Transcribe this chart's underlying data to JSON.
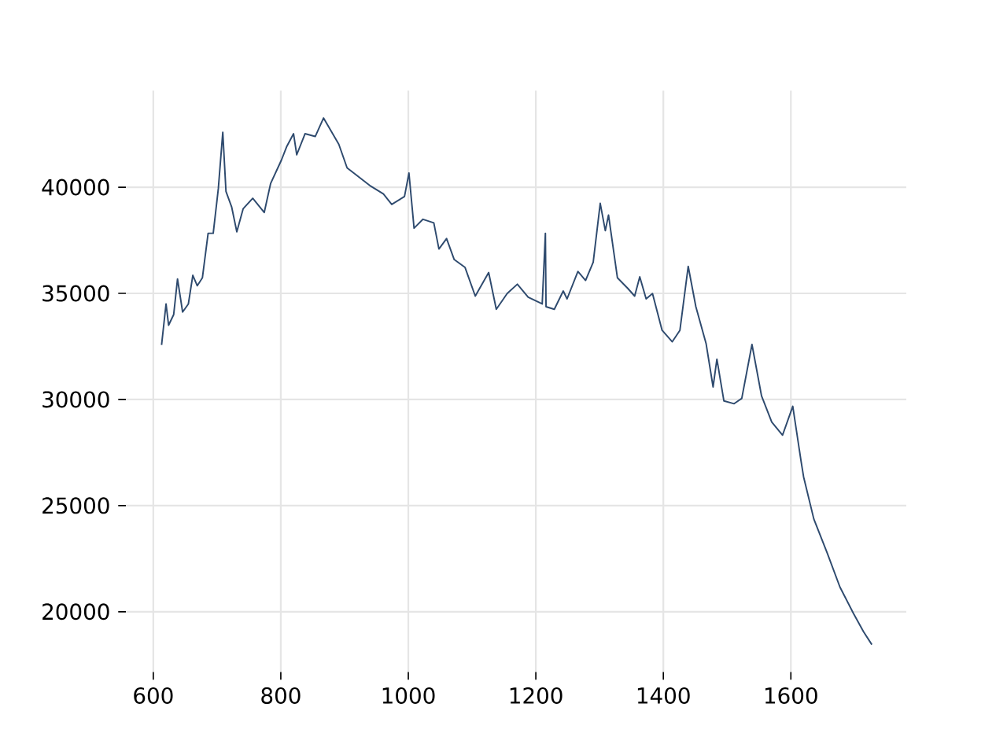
{
  "chart_data": {
    "type": "line",
    "color": "#2e4a6e",
    "grid": true,
    "xlim": [
      557,
      1781
    ],
    "ylim": [
      17160,
      44550
    ],
    "xticks": [
      600,
      800,
      1000,
      1200,
      1400,
      1600
    ],
    "yticks": [
      20000,
      25000,
      30000,
      35000,
      40000
    ],
    "x": [
      613,
      620,
      624,
      632,
      638,
      646,
      655,
      662,
      669,
      677,
      686,
      694,
      702,
      709,
      714,
      723,
      731,
      741,
      756,
      774,
      784,
      801,
      809,
      820,
      825,
      838,
      854,
      867,
      879,
      891,
      904,
      920,
      941,
      961,
      974,
      994,
      1001,
      1009,
      1023,
      1040,
      1048,
      1060,
      1072,
      1089,
      1105,
      1126,
      1138,
      1155,
      1171,
      1188,
      1210,
      1215,
      1216,
      1229,
      1243,
      1249,
      1266,
      1278,
      1290,
      1301,
      1309,
      1314,
      1328,
      1344,
      1355,
      1363,
      1373,
      1383,
      1398,
      1414,
      1426,
      1439,
      1451,
      1467,
      1478,
      1484,
      1495,
      1511,
      1523,
      1539,
      1554,
      1570,
      1587,
      1603,
      1616,
      1620,
      1636,
      1657,
      1677,
      1698,
      1714,
      1727
    ],
    "values": [
      32570,
      34500,
      33500,
      34000,
      35680,
      34120,
      34500,
      35850,
      35360,
      35730,
      37830,
      37830,
      39930,
      42590,
      39800,
      39060,
      37900,
      38990,
      39480,
      38810,
      40170,
      41280,
      41900,
      42520,
      41530,
      42520,
      42390,
      43260,
      42640,
      42020,
      40910,
      40540,
      40050,
      39680,
      39190,
      39560,
      40670,
      38070,
      38490,
      38320,
      37090,
      37580,
      36590,
      36220,
      34870,
      35980,
      34250,
      34990,
      35430,
      34820,
      34500,
      37830,
      34370,
      34250,
      35110,
      34740,
      36030,
      35610,
      36470,
      39240,
      37950,
      38690,
      35730,
      35240,
      34870,
      35780,
      34740,
      34990,
      33260,
      32720,
      33260,
      36270,
      34370,
      32640,
      30590,
      31900,
      29930,
      29800,
      30050,
      32590,
      30170,
      28940,
      28320,
      29680,
      27090,
      26350,
      24370,
      22770,
      21160,
      19930,
      19060,
      18450
    ]
  }
}
